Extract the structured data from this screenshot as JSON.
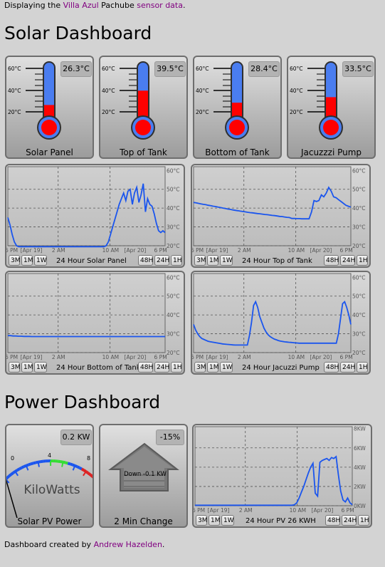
{
  "intro": {
    "prefix": "Displaying the ",
    "link1": "Villa Azul",
    "middle": " Pachube ",
    "link2": "sensor data",
    "suffix": "."
  },
  "solar": {
    "title": "Solar Dashboard",
    "scale_labels": [
      "60°C",
      "40°C",
      "20°C"
    ],
    "gauges": [
      {
        "label": "Solar Panel",
        "reading": "26.3°C",
        "value": 26.3
      },
      {
        "label": "Top of Tank",
        "reading": "39.5°C",
        "value": 39.5
      },
      {
        "label": "Bottom of Tank",
        "reading": "28.4°C",
        "value": 28.4
      },
      {
        "label": "Jacuzzzi Pump",
        "reading": "33.5°C",
        "value": 33.5
      }
    ],
    "y_ticks": [
      "60°C",
      "50°C",
      "40°C",
      "30°C",
      "20°C"
    ],
    "x_ticks": [
      "6 PM",
      "[Apr 19]",
      "2 AM",
      "10 AM",
      "[Apr 20]",
      "6 PM"
    ],
    "charts": [
      {
        "title": "24 Hour Solar Panel",
        "ymin": 20,
        "ymax": 62,
        "values": [
          35,
          31,
          26,
          22,
          20,
          19.5,
          19.5,
          19.5,
          19.5,
          19.5,
          19.5,
          19.5,
          19.5,
          19.5,
          19.5,
          19.5,
          19.5,
          19.5,
          19.5,
          19.5,
          19.5,
          19.5,
          19.5,
          19.5,
          19.5,
          19.5,
          19.5,
          19.5,
          19.5,
          19.5,
          19.5,
          19.5,
          19.5,
          19.5,
          19.5,
          19.5,
          19.5,
          19.5,
          19.5,
          19.5,
          19.5,
          19.5,
          19.5,
          19.5,
          19.5,
          20,
          22,
          26,
          30,
          34,
          38,
          42,
          45,
          48,
          44,
          49,
          50,
          42,
          48,
          51,
          43,
          47,
          53,
          38,
          45,
          42,
          41,
          37,
          32,
          28,
          27,
          28,
          27
        ]
      },
      {
        "title": "24 Hour Top of Tank",
        "ymin": 20,
        "ymax": 62,
        "values": [
          43,
          42.8,
          42.5,
          42.2,
          42,
          41.8,
          41.5,
          41.3,
          41,
          40.8,
          40.5,
          40.3,
          40,
          39.8,
          39.5,
          39.3,
          39,
          38.8,
          38.6,
          38.4,
          38.2,
          38,
          37.8,
          37.6,
          37.5,
          37.3,
          37.1,
          37,
          36.8,
          36.6,
          36.5,
          36.3,
          36.1,
          36,
          35.8,
          35.6,
          35.5,
          35.3,
          35.1,
          35,
          34.5,
          34.5,
          34.4,
          34.4,
          34.3,
          34.3,
          34.3,
          34.3,
          38,
          44,
          43.5,
          44,
          47,
          46,
          48,
          51,
          49,
          46,
          45.5,
          44.5,
          43.5,
          42.5,
          41.5,
          41,
          40.5
        ]
      },
      {
        "title": "24 Hour Bottom of Tank",
        "ymin": 20,
        "ymax": 62,
        "values": [
          29,
          29,
          28.8,
          28.8,
          28.7,
          28.7,
          28.6,
          28.6,
          28.6,
          28.5,
          28.5,
          28.5,
          28.5,
          28.5,
          28.5,
          28.5,
          28.5,
          28.5,
          28.5,
          28.5,
          28.5,
          28.5,
          28.5,
          28.5,
          28.5,
          28.5,
          28.5,
          28.5,
          28.5,
          28.5,
          28.5,
          28.5,
          28.5,
          28.5,
          28.5,
          28.5,
          28.5,
          28.5,
          28.5,
          28.5,
          28.5,
          28.5,
          28.5,
          28.5,
          28.5,
          28.5,
          28.5,
          28.5,
          28.5,
          28.5,
          28.5,
          28.5,
          28.5,
          28.5,
          28.5,
          28.5,
          28.5,
          28.5,
          28.5,
          28.5
        ]
      },
      {
        "title": "24 Hour Jacuzzi Pump",
        "ymin": 20,
        "ymax": 62,
        "values": [
          35,
          32,
          30,
          28.5,
          27.5,
          27,
          26.5,
          26,
          25.8,
          25.6,
          25.4,
          25.2,
          25,
          24.8,
          24.6,
          24.5,
          24.4,
          24.3,
          24.2,
          24.1,
          24,
          24,
          24,
          24,
          24,
          24,
          24,
          29,
          36,
          45,
          47,
          44,
          39,
          36,
          33,
          31,
          29.5,
          28.5,
          27.8,
          27.2,
          26.8,
          26.4,
          26.1,
          25.9,
          25.7,
          25.6,
          25.5,
          25.4,
          25.3,
          25.2,
          25.1,
          25,
          25,
          25,
          25,
          25,
          25,
          25,
          25,
          25,
          25,
          25,
          25,
          25,
          25,
          25,
          25,
          25,
          25,
          25,
          30,
          38,
          46,
          47,
          44,
          40,
          35
        ]
      }
    ]
  },
  "power": {
    "title": "Power Dashboard",
    "pv": {
      "label": "Solar PV Power",
      "reading": "0.2 KW",
      "scale": [
        "0",
        "4",
        "8"
      ],
      "unit": "KiloWatts",
      "value": 0.2,
      "max": 8
    },
    "change": {
      "label": "2 Min Change",
      "reading": "-15%",
      "arrow_text": "Down -0.1 KW"
    },
    "chart": {
      "title": "24 Hour PV 26 KWH",
      "y_ticks": [
        "8KW",
        "6KW",
        "4KW",
        "2KW",
        "0KW"
      ],
      "ymin": 0,
      "ymax": 8.2,
      "values": [
        0.05,
        0.05,
        0.05,
        0.05,
        0.05,
        0.05,
        0.05,
        0.05,
        0.05,
        0.05,
        0.05,
        0.05,
        0.05,
        0.05,
        0.05,
        0.05,
        0.05,
        0.05,
        0.05,
        0.05,
        0.05,
        0.05,
        0.05,
        0.05,
        0.05,
        0.05,
        0.05,
        0.05,
        0.05,
        0.05,
        0.05,
        0.05,
        0.05,
        0.05,
        0.05,
        0.05,
        0.05,
        0.05,
        0.05,
        0.05,
        0.05,
        0.05,
        0.05,
        0.1,
        0.3,
        0.8,
        1.4,
        2,
        2.7,
        3.4,
        4,
        4.4,
        1.3,
        1,
        4.5,
        4.7,
        4.8,
        4.9,
        4.7,
        5,
        4.9,
        5.1,
        3.2,
        1.5,
        0.6,
        0.4,
        0.8,
        0.3,
        0.1
      ]
    }
  },
  "range_buttons_left": [
    "3M",
    "1M",
    "1W"
  ],
  "range_buttons_right": [
    "48H",
    "24H",
    "1H"
  ],
  "footer": {
    "prefix": "Dashboard created by ",
    "link": "Andrew Hazelden",
    "suffix": "."
  },
  "colors": {
    "series": "#1a55ee",
    "mercury": "#ff0000",
    "tube": "#4a7df0"
  }
}
